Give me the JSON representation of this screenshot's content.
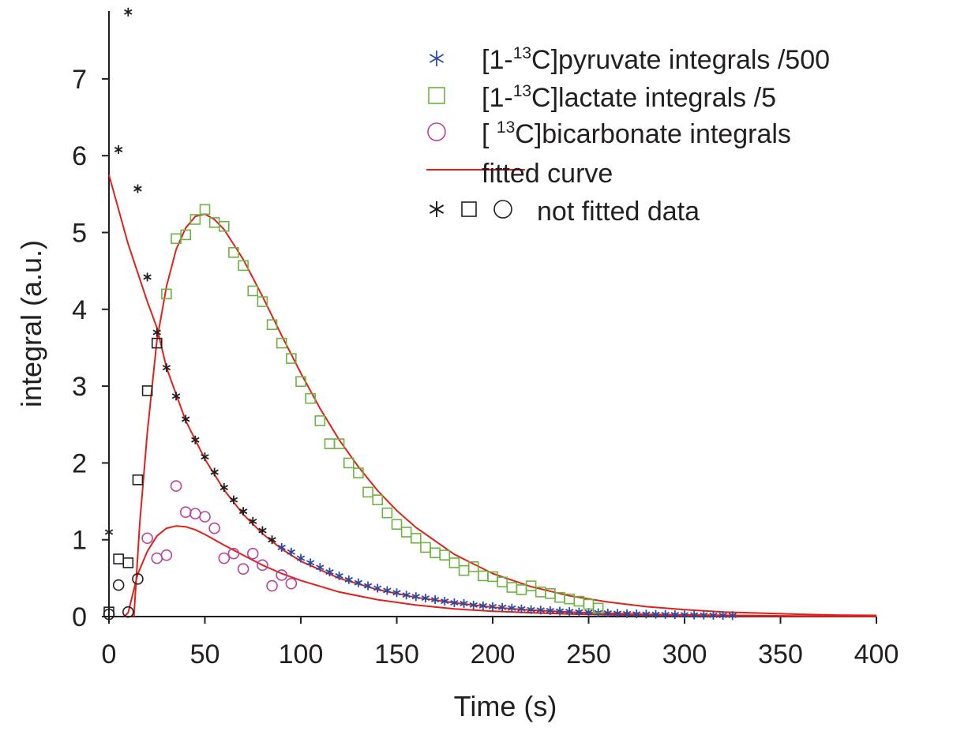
{
  "chart_data": {
    "type": "scatter",
    "xlabel": "Time (s)",
    "ylabel": "integral (a.u.)",
    "xlim": [
      0,
      400
    ],
    "ylim": [
      0,
      7.9
    ],
    "xticks": [
      0,
      50,
      100,
      150,
      200,
      250,
      300,
      350,
      400
    ],
    "yticks": [
      0,
      1,
      2,
      3,
      4,
      5,
      6,
      7
    ],
    "grid": false,
    "legend_position": "top-right",
    "colors": {
      "pyruvate": "#2e4a9e",
      "lactate": "#6cb33f",
      "bicarbonate": "#b8419a",
      "fitted": "#e0201b",
      "not_fitted": "#231f20",
      "axis": "#231f20"
    },
    "legend": [
      {
        "key": "pyruvate",
        "marker": "asterisk",
        "pre": "[1-",
        "sup": "13",
        "post": "C]pyruvate integrals /500"
      },
      {
        "key": "lactate",
        "marker": "square",
        "pre": "[1-",
        "sup": "13",
        "post": "C]lactate integrals /5"
      },
      {
        "key": "bicarbonate",
        "marker": "circle",
        "pre": "[ ",
        "sup": "13",
        "post": "C]bicarbonate integrals"
      },
      {
        "key": "fitted",
        "marker": "line",
        "pre": "fitted curve",
        "sup": "",
        "post": ""
      },
      {
        "key": "not_fitted",
        "marker": "asterisk-square-circle",
        "pre": "not fitted data",
        "sup": "",
        "post": ""
      }
    ],
    "series": [
      {
        "key": "pyruvate",
        "marker": "asterisk",
        "fitted": true,
        "x": [
          90,
          95,
          100,
          105,
          110,
          115,
          120,
          125,
          130,
          135,
          140,
          145,
          150,
          155,
          160,
          165,
          170,
          175,
          180,
          185,
          190,
          195,
          200,
          205,
          210,
          215,
          220,
          225,
          230,
          235,
          240,
          245,
          250,
          255,
          260,
          265,
          270,
          275,
          280,
          285,
          290,
          295,
          300,
          305,
          310,
          315,
          320,
          325
        ],
        "y": [
          0.9,
          0.84,
          0.76,
          0.7,
          0.64,
          0.58,
          0.53,
          0.48,
          0.44,
          0.4,
          0.37,
          0.34,
          0.31,
          0.28,
          0.26,
          0.24,
          0.22,
          0.2,
          0.18,
          0.17,
          0.15,
          0.14,
          0.13,
          0.12,
          0.11,
          0.1,
          0.09,
          0.085,
          0.078,
          0.071,
          0.065,
          0.06,
          0.055,
          0.05,
          0.046,
          0.042,
          0.038,
          0.035,
          0.032,
          0.029,
          0.027,
          0.025,
          0.023,
          0.021,
          0.019,
          0.017,
          0.015,
          0.014
        ]
      },
      {
        "key": "pyruvate_not_fitted",
        "marker": "asterisk",
        "fitted": false,
        "x": [
          0,
          5,
          10,
          15,
          20,
          25,
          30,
          35,
          40,
          45,
          50,
          55,
          60,
          65,
          70,
          75,
          80,
          85
        ],
        "y": [
          1.1,
          6.08,
          7.87,
          5.57,
          4.42,
          3.7,
          3.24,
          2.87,
          2.57,
          2.3,
          2.08,
          1.88,
          1.68,
          1.52,
          1.37,
          1.24,
          1.12,
          1.0
        ]
      },
      {
        "key": "lactate",
        "marker": "square",
        "fitted": true,
        "x": [
          30,
          35,
          40,
          45,
          50,
          55,
          60,
          65,
          70,
          75,
          80,
          85,
          90,
          95,
          100,
          105,
          110,
          115,
          120,
          125,
          130,
          135,
          140,
          145,
          150,
          155,
          160,
          165,
          170,
          175,
          180,
          185,
          190,
          195,
          200,
          205,
          210,
          215,
          220,
          225,
          230,
          235,
          240,
          245,
          250,
          255
        ],
        "y": [
          4.2,
          4.92,
          4.97,
          5.17,
          5.3,
          5.13,
          5.08,
          4.74,
          4.57,
          4.24,
          4.1,
          3.8,
          3.56,
          3.36,
          3.06,
          2.84,
          2.55,
          2.25,
          2.25,
          2.0,
          1.87,
          1.62,
          1.52,
          1.35,
          1.2,
          1.1,
          1.02,
          0.9,
          0.83,
          0.8,
          0.7,
          0.6,
          0.65,
          0.53,
          0.52,
          0.45,
          0.38,
          0.35,
          0.4,
          0.32,
          0.3,
          0.25,
          0.23,
          0.2,
          0.16,
          0.11
        ]
      },
      {
        "key": "lactate_not_fitted",
        "marker": "square",
        "fitted": false,
        "x": [
          0,
          5,
          10,
          15,
          20,
          25
        ],
        "y": [
          0.06,
          0.75,
          0.7,
          1.78,
          2.94,
          3.56
        ]
      },
      {
        "key": "bicarbonate",
        "marker": "circle",
        "fitted": true,
        "x": [
          20,
          25,
          30,
          35,
          40,
          45,
          50,
          55,
          60,
          65,
          70,
          75,
          80,
          85,
          90,
          95
        ],
        "y": [
          1.02,
          0.76,
          0.8,
          1.7,
          1.36,
          1.34,
          1.3,
          1.15,
          0.76,
          0.82,
          0.62,
          0.82,
          0.67,
          0.4,
          0.54,
          0.43
        ]
      },
      {
        "key": "bicarbonate_not_fitted",
        "marker": "circle",
        "fitted": false,
        "x": [
          0,
          5,
          10,
          15
        ],
        "y": [
          0.03,
          0.41,
          0.06,
          0.49
        ]
      }
    ],
    "fitted_curves": [
      {
        "key": "pyruvate_fit",
        "x": [
          0,
          10,
          20,
          25,
          30,
          40,
          50,
          60,
          70,
          80,
          90,
          100,
          120,
          140,
          160,
          180,
          200,
          220,
          240,
          260,
          280,
          300,
          320,
          340,
          360,
          380,
          400
        ],
        "y": [
          5.75,
          4.85,
          4.1,
          3.76,
          3.24,
          2.55,
          2.05,
          1.65,
          1.33,
          1.08,
          0.88,
          0.72,
          0.5,
          0.35,
          0.25,
          0.18,
          0.12,
          0.085,
          0.06,
          0.043,
          0.03,
          0.022,
          0.016,
          0.011,
          0.008,
          0.006,
          0.004
        ]
      },
      {
        "key": "lactate_fit",
        "x": [
          13,
          16,
          20,
          25,
          30,
          35,
          40,
          45,
          50,
          55,
          60,
          70,
          80,
          90,
          100,
          110,
          120,
          130,
          140,
          150,
          160,
          180,
          200,
          220,
          240,
          260,
          280,
          300,
          320,
          340,
          360,
          380,
          400
        ],
        "y": [
          0.0,
          1.2,
          2.4,
          3.6,
          4.3,
          4.78,
          5.06,
          5.21,
          5.24,
          5.17,
          5.04,
          4.65,
          4.17,
          3.66,
          3.17,
          2.71,
          2.3,
          1.95,
          1.64,
          1.38,
          1.16,
          0.81,
          0.56,
          0.39,
          0.27,
          0.19,
          0.13,
          0.09,
          0.06,
          0.045,
          0.03,
          0.02,
          0.015
        ]
      },
      {
        "key": "bicarbonate_fit",
        "x": [
          8,
          10,
          15,
          20,
          25,
          30,
          35,
          40,
          45,
          50,
          60,
          70,
          80,
          90,
          100,
          120,
          140,
          160,
          180,
          200,
          220,
          240,
          260,
          280,
          300,
          320,
          340,
          360,
          380,
          400
        ],
        "y": [
          0.0,
          0.05,
          0.55,
          0.85,
          1.05,
          1.15,
          1.18,
          1.17,
          1.13,
          1.07,
          0.93,
          0.8,
          0.67,
          0.56,
          0.47,
          0.32,
          0.22,
          0.15,
          0.1,
          0.07,
          0.05,
          0.033,
          0.023,
          0.016,
          0.011,
          0.008,
          0.005,
          0.004,
          0.003,
          0.002
        ]
      }
    ]
  }
}
